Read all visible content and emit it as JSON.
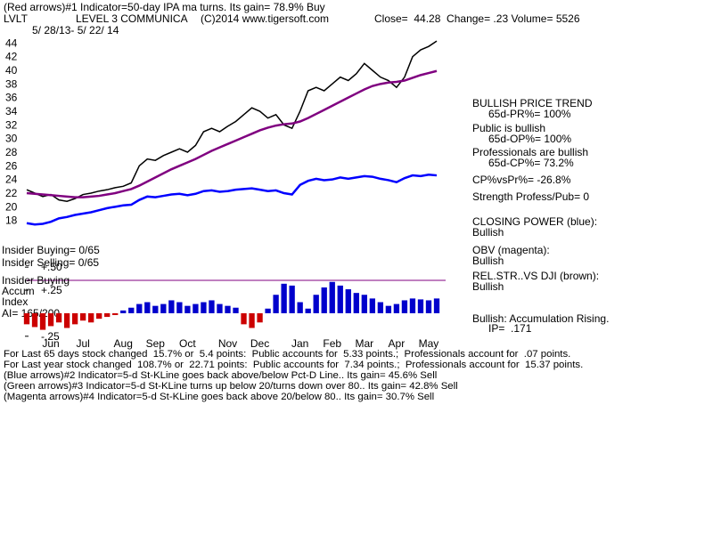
{
  "header": {
    "signal": "(Red arrows)#1 Indicator=50-day IPA ma turns. Its gain= 78.9% Buy",
    "symbol": "LVLT",
    "company": "LEVEL 3 COMMUNICA",
    "copyright": "(C)2014 www.tigersoft.com",
    "quote": "Close=  44.28  Change= .23 Volume= 5526",
    "dates": "5/ 28/13- 5/ 22/ 14"
  },
  "chart_data": [
    {
      "type": "line",
      "categories": [
        null,
        null,
        null,
        "Jun",
        null,
        null,
        null,
        "Jul",
        null,
        null,
        null,
        null,
        "Aug",
        null,
        null,
        null,
        "Sep",
        null,
        null,
        null,
        "Oct",
        null,
        null,
        null,
        null,
        "Nov",
        null,
        null,
        null,
        "Dec",
        null,
        null,
        null,
        null,
        "Jan",
        null,
        null,
        null,
        "Feb",
        null,
        null,
        null,
        "Mar",
        null,
        null,
        null,
        "Apr",
        null,
        null,
        null,
        "May",
        null
      ],
      "series": [
        {
          "color": "#000000",
          "values": [
            22.5,
            22,
            21.5,
            21.8,
            21,
            20.8,
            21.2,
            21.8,
            22,
            22.3,
            22.5,
            22.8,
            23,
            23.5,
            26,
            27,
            26.8,
            27.5,
            28,
            28.5,
            28,
            29,
            31,
            31.5,
            31,
            31.8,
            32.5,
            33.5,
            34.5,
            34,
            33,
            33.5,
            32,
            31.5,
            34,
            37,
            37.5,
            37,
            38,
            39,
            38.5,
            39.5,
            41,
            40,
            39,
            38.5,
            37.5,
            39,
            42,
            43,
            43.5,
            44.28
          ]
        },
        {
          "color": "#800080",
          "values": [
            22,
            21.9,
            21.8,
            21.7,
            21.6,
            21.5,
            21.4,
            21.4,
            21.5,
            21.6,
            21.8,
            22,
            22.3,
            22.6,
            23.1,
            23.7,
            24.3,
            24.9,
            25.5,
            26,
            26.5,
            27,
            27.6,
            28.2,
            28.7,
            29.2,
            29.7,
            30.2,
            30.7,
            31.2,
            31.6,
            31.9,
            32.1,
            32.2,
            32.5,
            33,
            33.6,
            34.2,
            34.8,
            35.4,
            36,
            36.6,
            37.2,
            37.7,
            38,
            38.2,
            38.3,
            38.5,
            38.9,
            39.3,
            39.6,
            39.9
          ]
        },
        {
          "color": "#0000ff",
          "values": [
            17.6,
            17.4,
            17.5,
            17.8,
            18.3,
            18.5,
            18.8,
            19,
            19.2,
            19.5,
            19.8,
            20,
            20.2,
            20.3,
            21,
            21.5,
            21.4,
            21.6,
            21.8,
            21.9,
            21.7,
            21.9,
            22.3,
            22.4,
            22.2,
            22.3,
            22.5,
            22.6,
            22.7,
            22.5,
            22.3,
            22.4,
            22,
            21.8,
            23.2,
            23.8,
            24.1,
            23.9,
            24,
            24.3,
            24.1,
            24.3,
            24.5,
            24.4,
            24.1,
            23.9,
            23.6,
            24.2,
            24.6,
            24.5,
            24.7,
            24.6
          ]
        }
      ],
      "ylim": [
        16,
        46
      ],
      "yticks": [
        18,
        20,
        22,
        24,
        26,
        28,
        30,
        32,
        34,
        36,
        38,
        40,
        42,
        44
      ],
      "grid": false
    },
    {
      "type": "bar",
      "positive_color": "#0000cc",
      "negative_color": "#cc0000",
      "values": [
        -0.12,
        -0.15,
        -0.18,
        -0.14,
        -0.1,
        -0.16,
        -0.12,
        -0.08,
        -0.1,
        -0.06,
        -0.04,
        -0.02,
        0.03,
        0.06,
        0.1,
        0.12,
        0.08,
        0.1,
        0.14,
        0.12,
        0.08,
        0.1,
        0.12,
        0.14,
        0.1,
        0.08,
        0.06,
        -0.12,
        -0.16,
        -0.1,
        0.05,
        0.2,
        0.32,
        0.3,
        0.12,
        0.05,
        0.2,
        0.28,
        0.34,
        0.3,
        0.26,
        0.22,
        0.2,
        0.16,
        0.12,
        0.08,
        0.1,
        0.14,
        0.16,
        0.15,
        0.14,
        0.16
      ],
      "ylim": [
        -0.3,
        0.55
      ],
      "yticks": [
        {
          "value": 0.5,
          "label": "+.50"
        },
        {
          "value": 0.25,
          "label": "+.25"
        },
        {
          "value": -0.25,
          "label": "-.25"
        }
      ]
    }
  ],
  "left_labels": [
    "Insider Buying= 0/65",
    "Insider Selling= 0/65",
    "Insider Buying",
    "Accum",
    "Index",
    "AI= 165/200"
  ],
  "side_panel": [
    "BULLISH PRICE TREND",
    "65d-PR%= 100%",
    "Public is bullish",
    "65d-OP%= 100%",
    "Professionals are bullish",
    "65d-CP%= 73.2%",
    "CP%vsPr%= -26.8%",
    "Strength Profess/Pub= 0",
    "CLOSING POWER (blue):",
    "Bullish",
    "OBV (magenta):",
    "Bullish",
    "REL.STR..VS DJI (brown):",
    "Bullish",
    "Bullish: Accumulation Rising.",
    "IP=  .171"
  ],
  "footer": [
    "For Last 65 days stock changed  15.7% or  5.4 points:  Public accounts for  5.33 points.;  Professionals account for  .07 points.",
    "For Last year stock changed  108.7% or  22.71 points:  Public accounts for  7.34 points.;  Professionals account for  15.37 points.",
    "(Blue arrows)#2 Indicator=5-d St-KLine goes back above/below Pct-D Line.. Its gain= 45.6% Sell",
    "(Green arrows)#3 Indicator=5-d St-KLine turns up below 20/turns down over 80.. Its gain= 42.8% Sell",
    "(Magenta arrows)#4 Indicator=5-d St-KLine goes back above 20/below 80.. Its gain= 30.7% Sell"
  ]
}
